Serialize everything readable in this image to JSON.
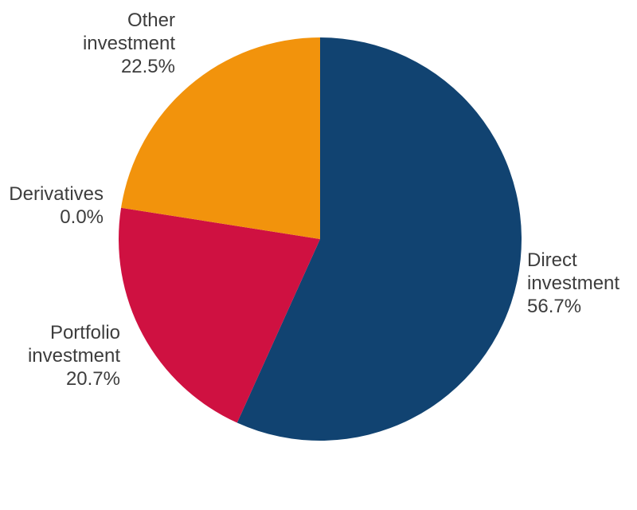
{
  "chart_data": {
    "type": "pie",
    "title": "",
    "legend": "none",
    "background_color": "#ffffff",
    "label_text_color": "#3d3d3d",
    "start_angle_deg": 0,
    "direction": "clockwise",
    "slices": [
      {
        "label": "Direct investment",
        "value": 56.7,
        "pct_label": "56.7%",
        "color": "#114371"
      },
      {
        "label": "Portfolio investment",
        "value": 20.7,
        "pct_label": "20.7%",
        "color": "#CF1141"
      },
      {
        "label": "Derivatives",
        "value": 0.0,
        "pct_label": "0.0%"
      },
      {
        "label": "Other investment",
        "value": 22.5,
        "pct_label": "22.5%",
        "color": "#F2930C"
      }
    ]
  }
}
